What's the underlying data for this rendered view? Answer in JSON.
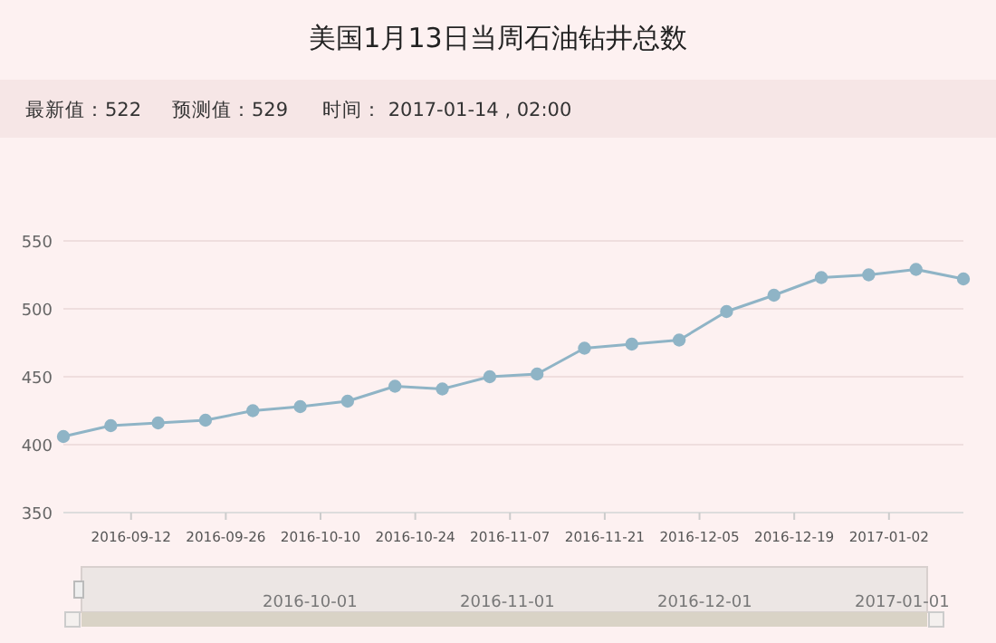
{
  "chart_data": {
    "type": "line",
    "title": "美国1月13日当周石油钻井总数",
    "annotations": [
      "最新值：522",
      "预测值：529",
      "时间： 2017-01-14 , 02:00",
      "2016-10-01",
      "2016-11-01",
      "2016-12-01",
      "2017-01-01"
    ],
    "x": [
      "2016-09-02",
      "2016-09-09",
      "2016-09-16",
      "2016-09-23",
      "2016-09-30",
      "2016-10-07",
      "2016-10-14",
      "2016-10-21",
      "2016-10-28",
      "2016-11-04",
      "2016-11-11",
      "2016-11-18",
      "2016-11-25",
      "2016-12-02",
      "2016-12-09",
      "2016-12-16",
      "2016-12-23",
      "2016-12-30",
      "2017-01-06",
      "2017-01-13"
    ],
    "series": [
      {
        "color": "#8fb4c6",
        "values": [
          406,
          414,
          416,
          418,
          425,
          428,
          432,
          443,
          441,
          450,
          452,
          471,
          474,
          477,
          498,
          510,
          523,
          525,
          529,
          522
        ]
      }
    ],
    "xlim": [
      "2016-09-02",
      "2017-01-13"
    ],
    "xticks": [
      "2016-09-12",
      "2016-09-26",
      "2016-10-10",
      "2016-10-24",
      "2016-11-07",
      "2016-11-21",
      "2016-12-05",
      "2016-12-19",
      "2017-01-02"
    ],
    "ylim": [
      350,
      550
    ],
    "yticks": [
      350,
      400,
      450,
      500,
      550
    ],
    "grid": "y",
    "marker": "circle",
    "line_style": "solid"
  }
}
